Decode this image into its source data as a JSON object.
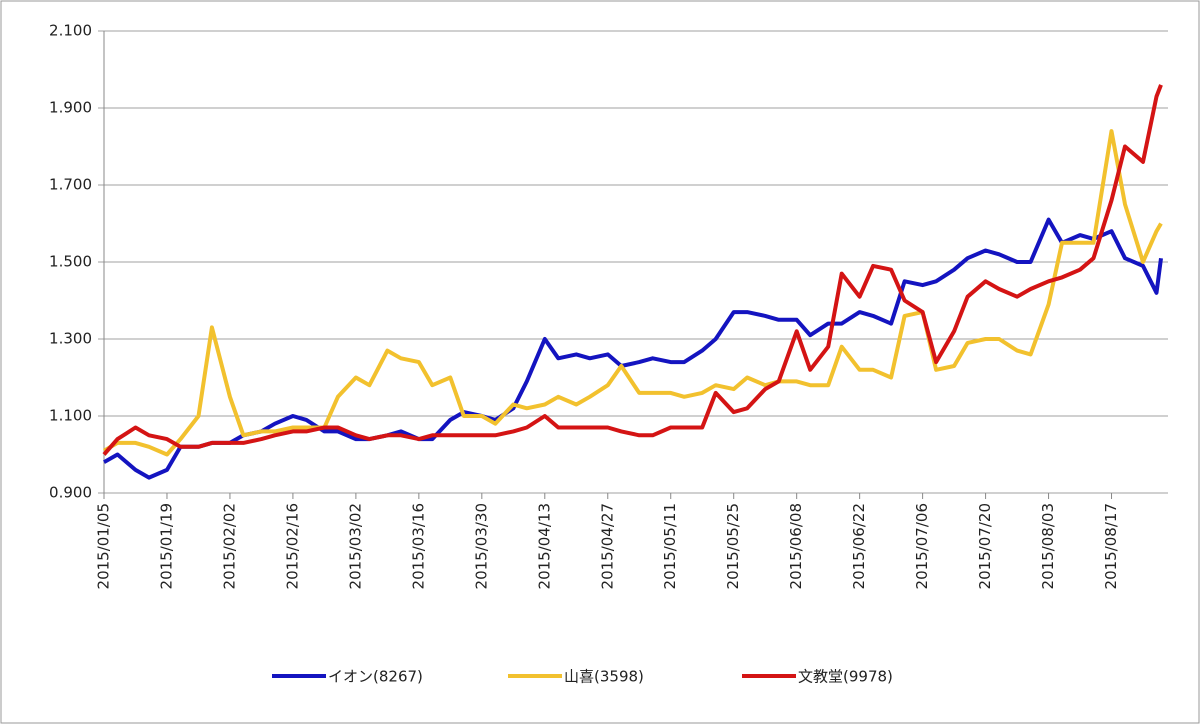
{
  "chart_data": {
    "type": "line",
    "x": [
      "2015/01/05",
      "2015/01/08",
      "2015/01/12",
      "2015/01/15",
      "2015/01/19",
      "2015/01/22",
      "2015/01/26",
      "2015/01/29",
      "2015/02/02",
      "2015/02/05",
      "2015/02/09",
      "2015/02/12",
      "2015/02/16",
      "2015/02/19",
      "2015/02/23",
      "2015/02/26",
      "2015/03/02",
      "2015/03/05",
      "2015/03/09",
      "2015/03/12",
      "2015/03/16",
      "2015/03/19",
      "2015/03/23",
      "2015/03/26",
      "2015/03/30",
      "2015/04/02",
      "2015/04/06",
      "2015/04/09",
      "2015/04/13",
      "2015/04/16",
      "2015/04/20",
      "2015/04/23",
      "2015/04/27",
      "2015/04/30",
      "2015/05/04",
      "2015/05/07",
      "2015/05/11",
      "2015/05/14",
      "2015/05/18",
      "2015/05/21",
      "2015/05/25",
      "2015/05/28",
      "2015/06/01",
      "2015/06/04",
      "2015/06/08",
      "2015/06/11",
      "2015/06/15",
      "2015/06/18",
      "2015/06/22",
      "2015/06/25",
      "2015/06/29",
      "2015/07/02",
      "2015/07/06",
      "2015/07/09",
      "2015/07/13",
      "2015/07/16",
      "2015/07/20",
      "2015/07/23",
      "2015/07/27",
      "2015/07/30",
      "2015/08/03",
      "2015/08/06",
      "2015/08/10",
      "2015/08/13",
      "2015/08/17",
      "2015/08/20",
      "2015/08/24",
      "2015/08/27",
      "2015/08/28"
    ],
    "series": [
      {
        "name": "イオン(8267)",
        "color": "#1414c0",
        "values": [
          0.98,
          1.0,
          0.96,
          0.94,
          0.96,
          1.02,
          1.02,
          1.03,
          1.03,
          1.05,
          1.06,
          1.08,
          1.1,
          1.09,
          1.06,
          1.06,
          1.04,
          1.04,
          1.05,
          1.06,
          1.04,
          1.04,
          1.09,
          1.11,
          1.1,
          1.09,
          1.12,
          1.19,
          1.3,
          1.25,
          1.26,
          1.25,
          1.26,
          1.23,
          1.24,
          1.25,
          1.24,
          1.24,
          1.27,
          1.3,
          1.37,
          1.37,
          1.36,
          1.35,
          1.35,
          1.31,
          1.34,
          1.34,
          1.37,
          1.36,
          1.34,
          1.45,
          1.44,
          1.45,
          1.48,
          1.51,
          1.53,
          1.52,
          1.5,
          1.5,
          1.61,
          1.55,
          1.57,
          1.56,
          1.58,
          1.51,
          1.49,
          1.42,
          1.51
        ]
      },
      {
        "name": "山喜(3598)",
        "color": "#f2c12e",
        "values": [
          1.01,
          1.03,
          1.03,
          1.02,
          1.0,
          1.04,
          1.1,
          1.33,
          1.15,
          1.05,
          1.06,
          1.06,
          1.07,
          1.07,
          1.07,
          1.15,
          1.2,
          1.18,
          1.27,
          1.25,
          1.24,
          1.18,
          1.2,
          1.1,
          1.1,
          1.08,
          1.13,
          1.12,
          1.13,
          1.15,
          1.13,
          1.15,
          1.18,
          1.23,
          1.16,
          1.16,
          1.16,
          1.15,
          1.16,
          1.18,
          1.17,
          1.2,
          1.18,
          1.19,
          1.19,
          1.18,
          1.18,
          1.28,
          1.22,
          1.22,
          1.2,
          1.36,
          1.37,
          1.22,
          1.23,
          1.29,
          1.3,
          1.3,
          1.27,
          1.26,
          1.39,
          1.55,
          1.55,
          1.55,
          1.84,
          1.65,
          1.5,
          1.58,
          1.6
        ]
      },
      {
        "name": "文教堂(9978)",
        "color": "#d41414",
        "values": [
          1.0,
          1.04,
          1.07,
          1.05,
          1.04,
          1.02,
          1.02,
          1.03,
          1.03,
          1.03,
          1.04,
          1.05,
          1.06,
          1.06,
          1.07,
          1.07,
          1.05,
          1.04,
          1.05,
          1.05,
          1.04,
          1.05,
          1.05,
          1.05,
          1.05,
          1.05,
          1.06,
          1.07,
          1.1,
          1.07,
          1.07,
          1.07,
          1.07,
          1.06,
          1.05,
          1.05,
          1.07,
          1.07,
          1.07,
          1.16,
          1.11,
          1.12,
          1.17,
          1.19,
          1.32,
          1.22,
          1.28,
          1.47,
          1.41,
          1.49,
          1.48,
          1.4,
          1.37,
          1.24,
          1.32,
          1.41,
          1.45,
          1.43,
          1.41,
          1.43,
          1.45,
          1.46,
          1.48,
          1.51,
          1.66,
          1.8,
          1.76,
          1.93,
          1.96
        ]
      }
    ],
    "xlim": [
      "2015/01/05",
      "2015/08/28"
    ],
    "xticks": [
      "2015/01/05",
      "2015/01/19",
      "2015/02/02",
      "2015/02/16",
      "2015/03/02",
      "2015/03/16",
      "2015/03/30",
      "2015/04/13",
      "2015/04/27",
      "2015/05/11",
      "2015/05/25",
      "2015/06/08",
      "2015/06/22",
      "2015/07/06",
      "2015/07/20",
      "2015/08/03",
      "2015/08/17"
    ],
    "ylim": [
      0.9,
      2.1
    ],
    "yticks": [
      {
        "value": 0.9,
        "label": "0.900"
      },
      {
        "value": 1.1,
        "label": "1.100"
      },
      {
        "value": 1.3,
        "label": "1.300"
      },
      {
        "value": 1.5,
        "label": "1.500"
      },
      {
        "value": 1.7,
        "label": "1.700"
      },
      {
        "value": 1.9,
        "label": "1.900"
      },
      {
        "value": 2.1,
        "label": "2.100"
      }
    ],
    "grid": true,
    "legend": "bottom"
  }
}
